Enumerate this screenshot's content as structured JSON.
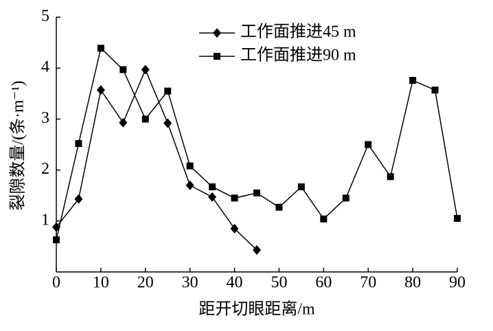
{
  "chart_data": {
    "type": "line",
    "xlabel": "距开切眼距离/m",
    "ylabel": "裂隙数量/(条·m⁻¹)",
    "xlim": [
      0,
      90
    ],
    "xticks": [
      0,
      10,
      20,
      30,
      40,
      50,
      60,
      70,
      80,
      90
    ],
    "ylim": [
      0,
      5
    ],
    "yticks": [
      1,
      2,
      3,
      4,
      5
    ],
    "legend": "top",
    "series": [
      {
        "name": "工作面推进45 m",
        "color": "#000000",
        "marker": "diamond",
        "x": [
          0,
          5,
          10,
          15,
          20,
          25,
          30,
          35,
          40,
          45
        ],
        "values": [
          0.88,
          1.43,
          3.57,
          2.93,
          3.97,
          2.92,
          1.7,
          1.47,
          0.85,
          0.43
        ]
      },
      {
        "name": "工作面推进90 m",
        "color": "#000000",
        "marker": "square",
        "x": [
          0,
          5,
          10,
          15,
          20,
          25,
          30,
          35,
          40,
          45,
          50,
          55,
          60,
          65,
          70,
          75,
          80,
          85,
          90
        ],
        "values": [
          0.63,
          2.52,
          4.39,
          3.97,
          3.0,
          3.55,
          2.08,
          1.67,
          1.45,
          1.55,
          1.27,
          1.67,
          1.04,
          1.45,
          2.5,
          1.87,
          3.76,
          3.57,
          1.05
        ]
      }
    ]
  }
}
